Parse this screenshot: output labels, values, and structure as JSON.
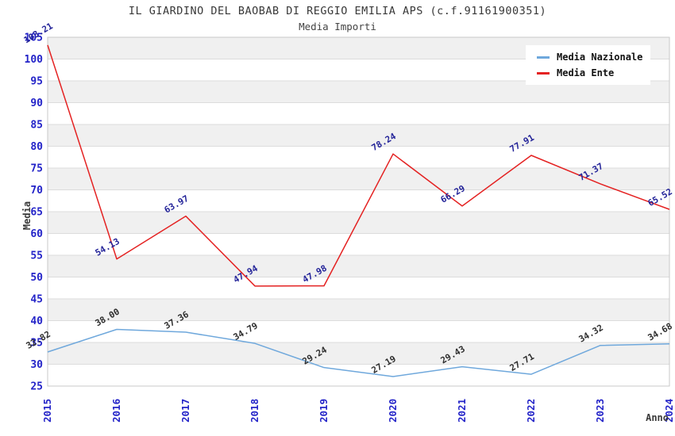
{
  "chart_data": {
    "type": "line",
    "title": "IL GIARDINO DEL BAOBAB DI REGGIO EMILIA APS (c.f.91161900351)",
    "subtitle": "Media Importi",
    "xlabel": "Anno",
    "ylabel": "Media",
    "categories": [
      "2015",
      "2016",
      "2017",
      "2018",
      "2019",
      "2020",
      "2021",
      "2022",
      "2023",
      "2024"
    ],
    "series": [
      {
        "name": "Media Nazionale",
        "color": "#6fa8dc",
        "label_color": "#2e2e2e",
        "values": [
          32.82,
          38.0,
          37.36,
          34.79,
          29.24,
          27.19,
          29.43,
          27.71,
          34.32,
          34.68
        ]
      },
      {
        "name": "Media Ente",
        "color": "#e42222",
        "label_color": "#242499",
        "values": [
          103.21,
          54.13,
          63.97,
          47.94,
          47.98,
          78.24,
          66.29,
          77.91,
          71.37,
          65.52
        ]
      }
    ],
    "ylim": [
      25,
      105
    ],
    "ytick_step": 5,
    "grid": true,
    "legend_position": "top-right",
    "styles": {
      "tick_label_color": "#2323c8",
      "axis_title_color": "#3a3a3a",
      "value_label_blue_series": "#2e2e2e",
      "value_label_red_series": "#242499",
      "band_colors": [
        "#f0f0f0",
        "#ffffff"
      ],
      "gridline_color": "#dcdcdc",
      "plot_border_color": "#c9c9c9",
      "legend_bg": "#ffffff",
      "legend_text_color": "#111111"
    }
  }
}
